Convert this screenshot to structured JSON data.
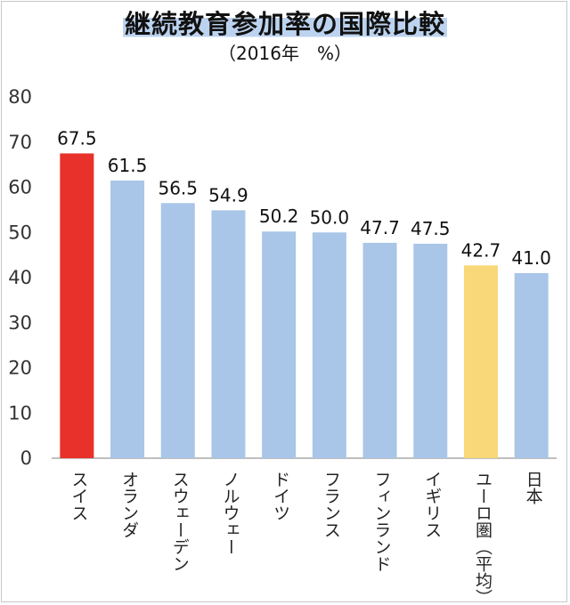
{
  "chart_data": {
    "type": "bar",
    "title": "継続教育参加率の国際比較",
    "subtitle": "（2016年　%）",
    "xlabel": "",
    "ylabel": "",
    "ylim": [
      0,
      80
    ],
    "yticks": [
      0,
      10,
      20,
      30,
      40,
      50,
      60,
      70,
      80
    ],
    "grid": false,
    "categories": [
      "スイス",
      "オランダ",
      "スウェーデン",
      "ノルウェー",
      "ドイツ",
      "フランス",
      "フィンランド",
      "イギリス",
      "ユーロ圏（平均）",
      "日本"
    ],
    "values": [
      67.5,
      61.5,
      56.5,
      54.9,
      50.2,
      50.0,
      47.7,
      47.5,
      42.7,
      41.0
    ],
    "value_labels": [
      "67.5",
      "61.5",
      "56.5",
      "54.9",
      "50.2",
      "50.0",
      "47.7",
      "47.5",
      "42.7",
      "41.0"
    ],
    "bar_colors": [
      "#e8312a",
      "#a9c5e8",
      "#a9c5e8",
      "#a9c5e8",
      "#a9c5e8",
      "#a9c5e8",
      "#a9c5e8",
      "#a9c5e8",
      "#f8d878",
      "#a9c5e8"
    ]
  },
  "colors": {
    "axis": "#999999",
    "tick_text": "#333333"
  }
}
